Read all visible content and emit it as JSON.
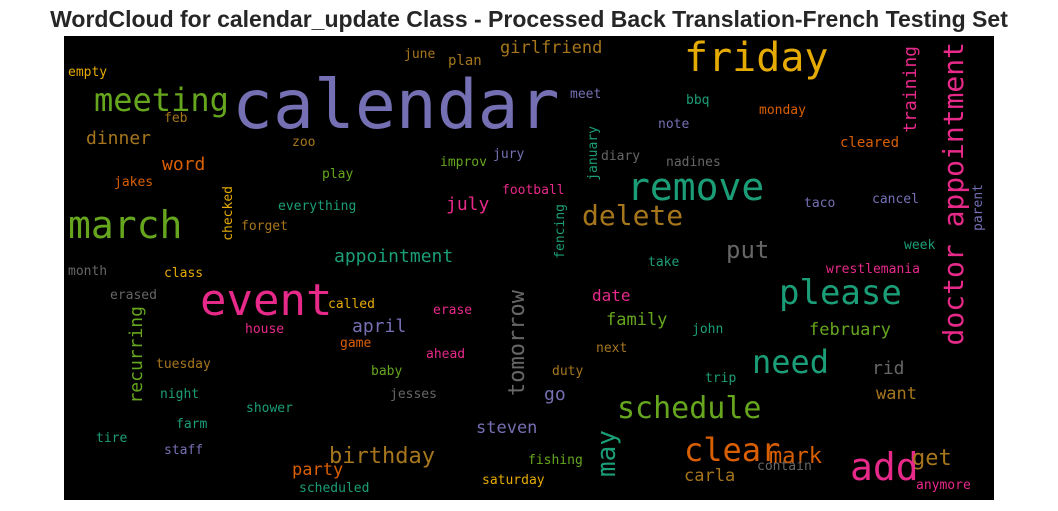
{
  "title": "WordCloud for calendar_update Class - Processed Back Translation-French Testing Set",
  "words": [
    {
      "text": "calendar",
      "color": "#7570b3"
    },
    {
      "text": "friday",
      "color": "#e6ab02"
    },
    {
      "text": "meeting",
      "color": "#66a61e"
    },
    {
      "text": "march",
      "color": "#66a61e"
    },
    {
      "text": "remove",
      "color": "#1b9e77"
    },
    {
      "text": "delete",
      "color": "#a6761d"
    },
    {
      "text": "event",
      "color": "#e7298a"
    },
    {
      "text": "please",
      "color": "#1b9e77"
    },
    {
      "text": "doctor appointment",
      "color": "#e7298a"
    },
    {
      "text": "need",
      "color": "#1b9e77"
    },
    {
      "text": "schedule",
      "color": "#66a61e"
    },
    {
      "text": "clear",
      "color": "#d95f02"
    },
    {
      "text": "add",
      "color": "#e7298a"
    },
    {
      "text": "tomorrow",
      "color": "#666666"
    },
    {
      "text": "birthday",
      "color": "#a6761d"
    },
    {
      "text": "may",
      "color": "#1b9e77"
    },
    {
      "text": "mark",
      "color": "#d95f02"
    },
    {
      "text": "put",
      "color": "#666666"
    },
    {
      "text": "appointment",
      "color": "#1b9e77"
    },
    {
      "text": "girlfriend",
      "color": "#a6761d"
    },
    {
      "text": "dinner",
      "color": "#a6761d"
    },
    {
      "text": "word",
      "color": "#d95f02"
    },
    {
      "text": "july",
      "color": "#e7298a"
    },
    {
      "text": "april",
      "color": "#7570b3"
    },
    {
      "text": "recurring",
      "color": "#66a61e"
    },
    {
      "text": "training",
      "color": "#e7298a"
    },
    {
      "text": "get",
      "color": "#a6761d"
    },
    {
      "text": "family",
      "color": "#66a61e"
    },
    {
      "text": "february",
      "color": "#66a61e"
    },
    {
      "text": "date",
      "color": "#e7298a"
    },
    {
      "text": "steven",
      "color": "#7570b3"
    },
    {
      "text": "want",
      "color": "#a6761d"
    },
    {
      "text": "rid",
      "color": "#666666"
    },
    {
      "text": "go",
      "color": "#7570b3"
    },
    {
      "text": "carla",
      "color": "#a6761d"
    },
    {
      "text": "party",
      "color": "#d95f02"
    },
    {
      "text": "june",
      "color": "#a6761d"
    },
    {
      "text": "plan",
      "color": "#a6761d"
    },
    {
      "text": "empty",
      "color": "#e6ab02"
    },
    {
      "text": "meet",
      "color": "#7570b3"
    },
    {
      "text": "bbq",
      "color": "#1b9e77"
    },
    {
      "text": "monday",
      "color": "#d95f02"
    },
    {
      "text": "feb",
      "color": "#a6761d"
    },
    {
      "text": "note",
      "color": "#7570b3"
    },
    {
      "text": "zoo",
      "color": "#a6761d"
    },
    {
      "text": "jury",
      "color": "#7570b3"
    },
    {
      "text": "improv",
      "color": "#66a61e"
    },
    {
      "text": "january",
      "color": "#1b9e77"
    },
    {
      "text": "diary",
      "color": "#666666"
    },
    {
      "text": "nadines",
      "color": "#666666"
    },
    {
      "text": "cleared",
      "color": "#d95f02"
    },
    {
      "text": "jakes",
      "color": "#d95f02"
    },
    {
      "text": "play",
      "color": "#66a61e"
    },
    {
      "text": "checked",
      "color": "#e6ab02"
    },
    {
      "text": "football",
      "color": "#e7298a"
    },
    {
      "text": "taco",
      "color": "#7570b3"
    },
    {
      "text": "cancel",
      "color": "#7570b3"
    },
    {
      "text": "parent",
      "color": "#7570b3"
    },
    {
      "text": "everything",
      "color": "#1b9e77"
    },
    {
      "text": "forget",
      "color": "#a6761d"
    },
    {
      "text": "fencing",
      "color": "#1b9e77"
    },
    {
      "text": "week",
      "color": "#1b9e77"
    },
    {
      "text": "month",
      "color": "#666666"
    },
    {
      "text": "class",
      "color": "#e6ab02"
    },
    {
      "text": "take",
      "color": "#1b9e77"
    },
    {
      "text": "wrestlemania",
      "color": "#e7298a"
    },
    {
      "text": "erased",
      "color": "#666666"
    },
    {
      "text": "called",
      "color": "#e6ab02"
    },
    {
      "text": "erase",
      "color": "#e7298a"
    },
    {
      "text": "house",
      "color": "#e7298a"
    },
    {
      "text": "john",
      "color": "#1b9e77"
    },
    {
      "text": "game",
      "color": "#d95f02"
    },
    {
      "text": "next",
      "color": "#a6761d"
    },
    {
      "text": "tuesday",
      "color": "#a6761d"
    },
    {
      "text": "ahead",
      "color": "#e7298a"
    },
    {
      "text": "night",
      "color": "#1b9e77"
    },
    {
      "text": "baby",
      "color": "#66a61e"
    },
    {
      "text": "duty",
      "color": "#a6761d"
    },
    {
      "text": "jesses",
      "color": "#666666"
    },
    {
      "text": "trip",
      "color": "#1b9e77"
    },
    {
      "text": "shower",
      "color": "#1b9e77"
    },
    {
      "text": "farm",
      "color": "#1b9e77"
    },
    {
      "text": "tire",
      "color": "#1b9e77"
    },
    {
      "text": "staff",
      "color": "#7570b3"
    },
    {
      "text": "fishing",
      "color": "#66a61e"
    },
    {
      "text": "contain",
      "color": "#666666"
    },
    {
      "text": "saturday",
      "color": "#e6ab02"
    },
    {
      "text": "scheduled",
      "color": "#1b9e77"
    },
    {
      "text": "anymore",
      "color": "#e7298a"
    }
  ]
}
